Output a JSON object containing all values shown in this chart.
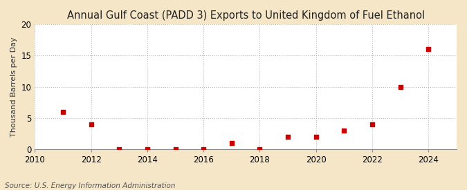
{
  "title": "Annual Gulf Coast (PADD 3) Exports to United Kingdom of Fuel Ethanol",
  "ylabel": "Thousand Barrels per Day",
  "source": "Source: U.S. Energy Information Administration",
  "figure_bg": "#f5e6c8",
  "plot_bg": "#ffffff",
  "years": [
    2011,
    2012,
    2013,
    2014,
    2015,
    2016,
    2017,
    2018,
    2019,
    2020,
    2021,
    2022,
    2023,
    2024
  ],
  "values": [
    6,
    4,
    0.05,
    0.05,
    0.05,
    0.05,
    1,
    0.05,
    2,
    2,
    3,
    4,
    10,
    16
  ],
  "xlim": [
    2010,
    2025
  ],
  "ylim": [
    0,
    20
  ],
  "yticks": [
    0,
    5,
    10,
    15,
    20
  ],
  "xticks": [
    2010,
    2012,
    2014,
    2016,
    2018,
    2020,
    2022,
    2024
  ],
  "marker_color": "#cc0000",
  "marker_size": 25,
  "grid_color": "#bbbbbb",
  "grid_linestyle": ":",
  "title_fontsize": 10.5,
  "axis_fontsize": 8.5,
  "source_fontsize": 7.5,
  "ylabel_fontsize": 8
}
